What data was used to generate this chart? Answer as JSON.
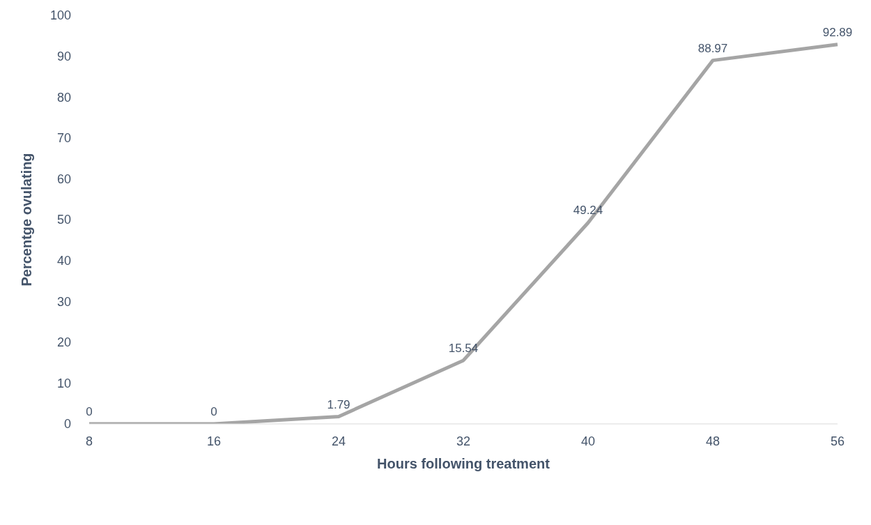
{
  "chart_data": {
    "type": "line",
    "xlabel": "Hours following treatment",
    "ylabel": "Percentge ovulating",
    "categories": [
      "8",
      "16",
      "24",
      "32",
      "40",
      "48",
      "56"
    ],
    "series": [
      {
        "color": "#a5a5a5",
        "values": [
          0,
          0,
          1.79,
          15.54,
          49.24,
          88.97,
          92.89
        ]
      }
    ],
    "ylim": [
      0,
      100
    ],
    "yticks": [
      0,
      10,
      20,
      30,
      40,
      50,
      60,
      70,
      80,
      90,
      100
    ],
    "data_labels": true,
    "grid": false,
    "marker": "none",
    "line_style": "solid"
  }
}
